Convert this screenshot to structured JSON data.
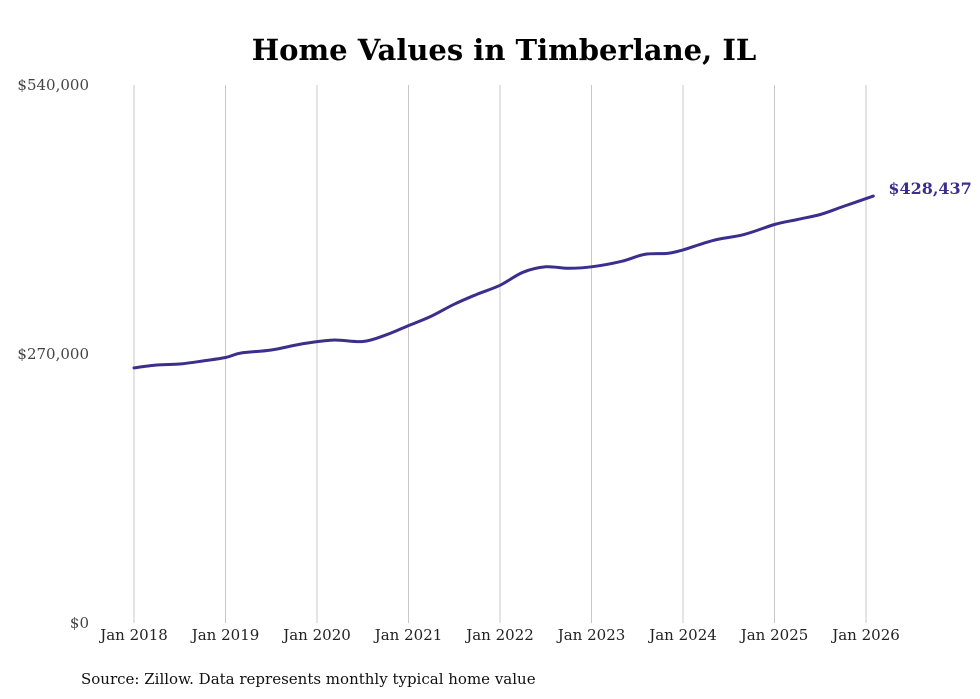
{
  "chart_data": {
    "type": "line",
    "title": "Home Values in Timberlane, IL",
    "xlabel": "",
    "ylabel": "",
    "source": "Source: Zillow. Data represents monthly typical home value",
    "x_ticks": [
      "Jan 2018",
      "Jan 2019",
      "Jan 2020",
      "Jan 2021",
      "Jan 2022",
      "Jan 2023",
      "Jan 2024",
      "Jan 2025",
      "Jan 2026"
    ],
    "y_ticks": [
      {
        "value": 0,
        "label": "$0"
      },
      {
        "value": 270000,
        "label": "$270,000"
      },
      {
        "value": 540000,
        "label": "$540,000"
      }
    ],
    "ylim": [
      0,
      540000
    ],
    "xlim": [
      2018.0,
      2026.0
    ],
    "grid": "vertical",
    "series": [
      {
        "name": "Typical home value",
        "color": "#3b2e8c",
        "x": [
          2018.0,
          2018.25,
          2018.5,
          2018.75,
          2019.0,
          2019.17,
          2019.5,
          2019.83,
          2020.17,
          2020.5,
          2020.75,
          2021.0,
          2021.25,
          2021.5,
          2021.75,
          2022.0,
          2022.25,
          2022.5,
          2022.75,
          2023.0,
          2023.33,
          2023.58,
          2023.83,
          2024.0,
          2024.33,
          2024.67,
          2025.0,
          2025.25,
          2025.5,
          2025.75,
          2026.08
        ],
        "values": [
          256000,
          259000,
          260000,
          263000,
          266500,
          271000,
          274000,
          280000,
          284000,
          282500,
          289000,
          298500,
          308000,
          320000,
          330000,
          339000,
          352000,
          357500,
          356000,
          357500,
          363000,
          370000,
          371000,
          374500,
          384000,
          390000,
          400000,
          405000,
          410000,
          418000,
          428437
        ]
      }
    ],
    "end_label": "$428,437"
  }
}
